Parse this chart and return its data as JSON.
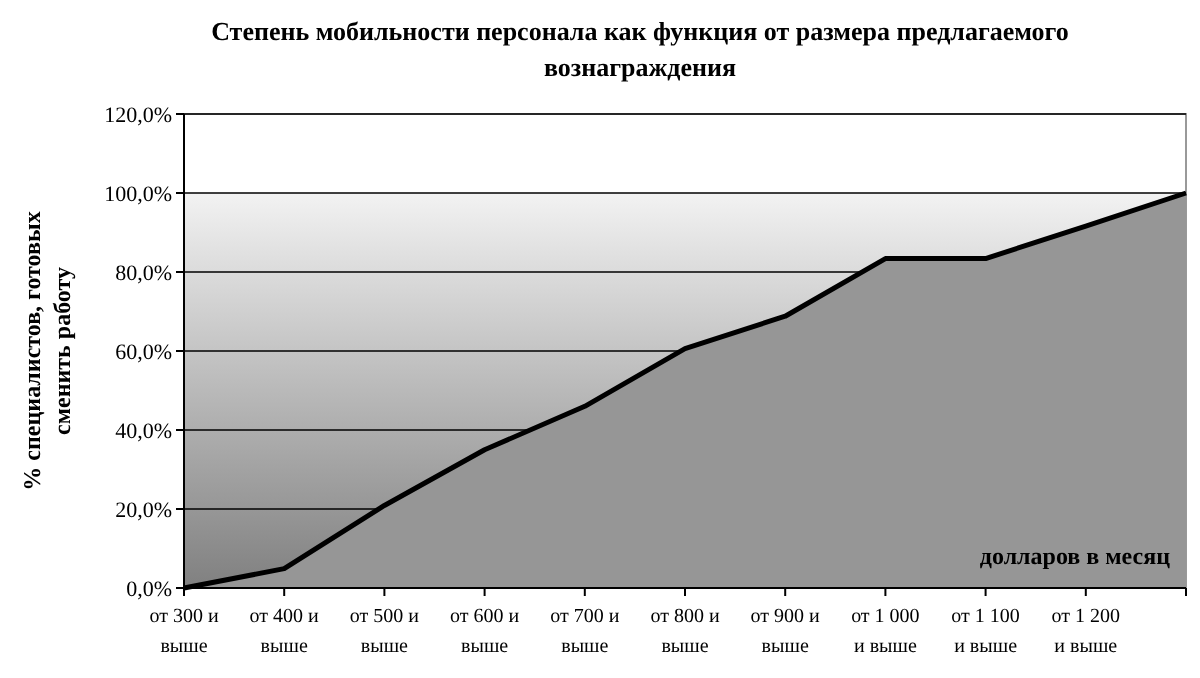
{
  "chart_data": {
    "type": "area",
    "title": "Степень мобильности персонала как функция от размера предлагаемого вознаграждения",
    "ylabel": "% специалистов, готовых сменить работу",
    "xlabel": "долларов в месяц",
    "categories": [
      "от 300 и выше",
      "от 400 и выше",
      "от 500 и выше",
      "от 600 и выше",
      "от 700 и выше",
      "от 800 и выше",
      "от 900 и выше",
      "от 1 000 и выше",
      "от 1 100 и выше",
      "от 1 200 и выше",
      null
    ],
    "series": [
      {
        "color": "#969696",
        "values": [
          0,
          4.9,
          20.9,
          35,
          46,
          60.6,
          68.8,
          83.4,
          83.4,
          91.6,
          100
        ]
      }
    ],
    "ylim": [
      0,
      120
    ],
    "yticks": [
      {
        "value": 0,
        "label": "0,0%"
      },
      {
        "value": 20,
        "label": "20,0%"
      },
      {
        "value": 40,
        "label": "40,0%"
      },
      {
        "value": 60,
        "label": "60,0%"
      },
      {
        "value": 80,
        "label": "80,0%"
      },
      {
        "value": 100,
        "label": "100,0%"
      },
      {
        "value": 120,
        "label": "120,0%"
      }
    ],
    "grid": "y"
  }
}
